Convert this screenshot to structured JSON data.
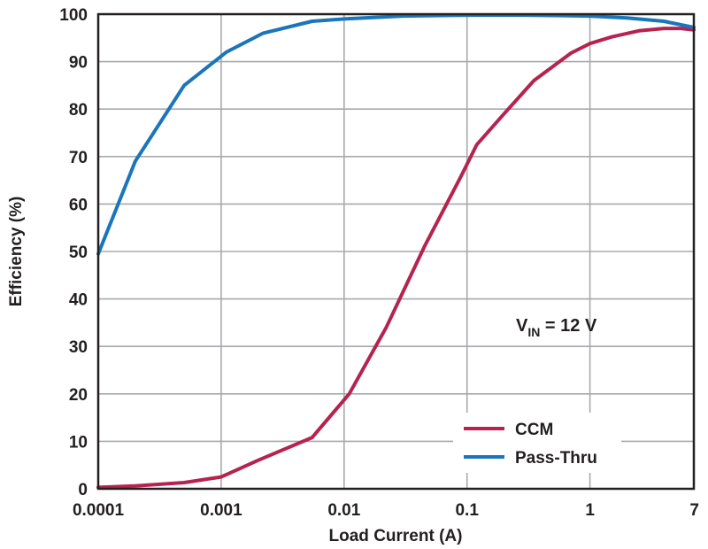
{
  "chart_data": {
    "type": "line",
    "title": "",
    "xlabel": "Load Current (A)",
    "ylabel": "Efficiency (%)",
    "xscale": "log",
    "xlim": [
      0.0001,
      7
    ],
    "ylim": [
      0,
      100
    ],
    "x_ticks": [
      {
        "value": 0.0001,
        "label": "0.0001"
      },
      {
        "value": 0.001,
        "label": "0.001"
      },
      {
        "value": 0.01,
        "label": "0.01"
      },
      {
        "value": 0.1,
        "label": "0.1"
      },
      {
        "value": 1,
        "label": "1"
      },
      {
        "value": 7,
        "label": "7"
      }
    ],
    "y_ticks": [
      {
        "value": 0,
        "label": "0"
      },
      {
        "value": 10,
        "label": "10"
      },
      {
        "value": 20,
        "label": "20"
      },
      {
        "value": 30,
        "label": "30"
      },
      {
        "value": 40,
        "label": "40"
      },
      {
        "value": 50,
        "label": "50"
      },
      {
        "value": 60,
        "label": "60"
      },
      {
        "value": 70,
        "label": "70"
      },
      {
        "value": 80,
        "label": "80"
      },
      {
        "value": 90,
        "label": "90"
      },
      {
        "value": 100,
        "label": "100"
      }
    ],
    "grid": true,
    "legend_position": "bottom-right",
    "annotation": {
      "main": "V",
      "sub": "IN",
      "rest": " = 12 V"
    },
    "series": [
      {
        "name": "CCM",
        "color": "#b5234e",
        "points": [
          {
            "x": 0.0001,
            "y": 0.3
          },
          {
            "x": 0.0002,
            "y": 0.6
          },
          {
            "x": 0.0005,
            "y": 1.3
          },
          {
            "x": 0.001,
            "y": 2.5
          },
          {
            "x": 0.002,
            "y": 6
          },
          {
            "x": 0.0055,
            "y": 10.8
          },
          {
            "x": 0.011,
            "y": 20
          },
          {
            "x": 0.022,
            "y": 34
          },
          {
            "x": 0.045,
            "y": 51
          },
          {
            "x": 0.09,
            "y": 66
          },
          {
            "x": 0.12,
            "y": 72.5
          },
          {
            "x": 0.2,
            "y": 79
          },
          {
            "x": 0.35,
            "y": 86
          },
          {
            "x": 0.7,
            "y": 91.8
          },
          {
            "x": 1.0,
            "y": 93.8
          },
          {
            "x": 1.5,
            "y": 95.2
          },
          {
            "x": 2.5,
            "y": 96.5
          },
          {
            "x": 4.0,
            "y": 97
          },
          {
            "x": 5.5,
            "y": 97
          },
          {
            "x": 7,
            "y": 96.7
          }
        ]
      },
      {
        "name": "Pass-Thru",
        "color": "#1b75bb",
        "points": [
          {
            "x": 0.0001,
            "y": 49.5
          },
          {
            "x": 0.0002,
            "y": 69
          },
          {
            "x": 0.0005,
            "y": 85
          },
          {
            "x": 0.0011,
            "y": 92
          },
          {
            "x": 0.0022,
            "y": 96
          },
          {
            "x": 0.0055,
            "y": 98.5
          },
          {
            "x": 0.01,
            "y": 99
          },
          {
            "x": 0.03,
            "y": 99.6
          },
          {
            "x": 0.1,
            "y": 99.8
          },
          {
            "x": 0.3,
            "y": 99.8
          },
          {
            "x": 1.0,
            "y": 99.6
          },
          {
            "x": 2.0,
            "y": 99.2
          },
          {
            "x": 4.0,
            "y": 98.5
          },
          {
            "x": 7,
            "y": 97.2
          }
        ]
      }
    ]
  }
}
